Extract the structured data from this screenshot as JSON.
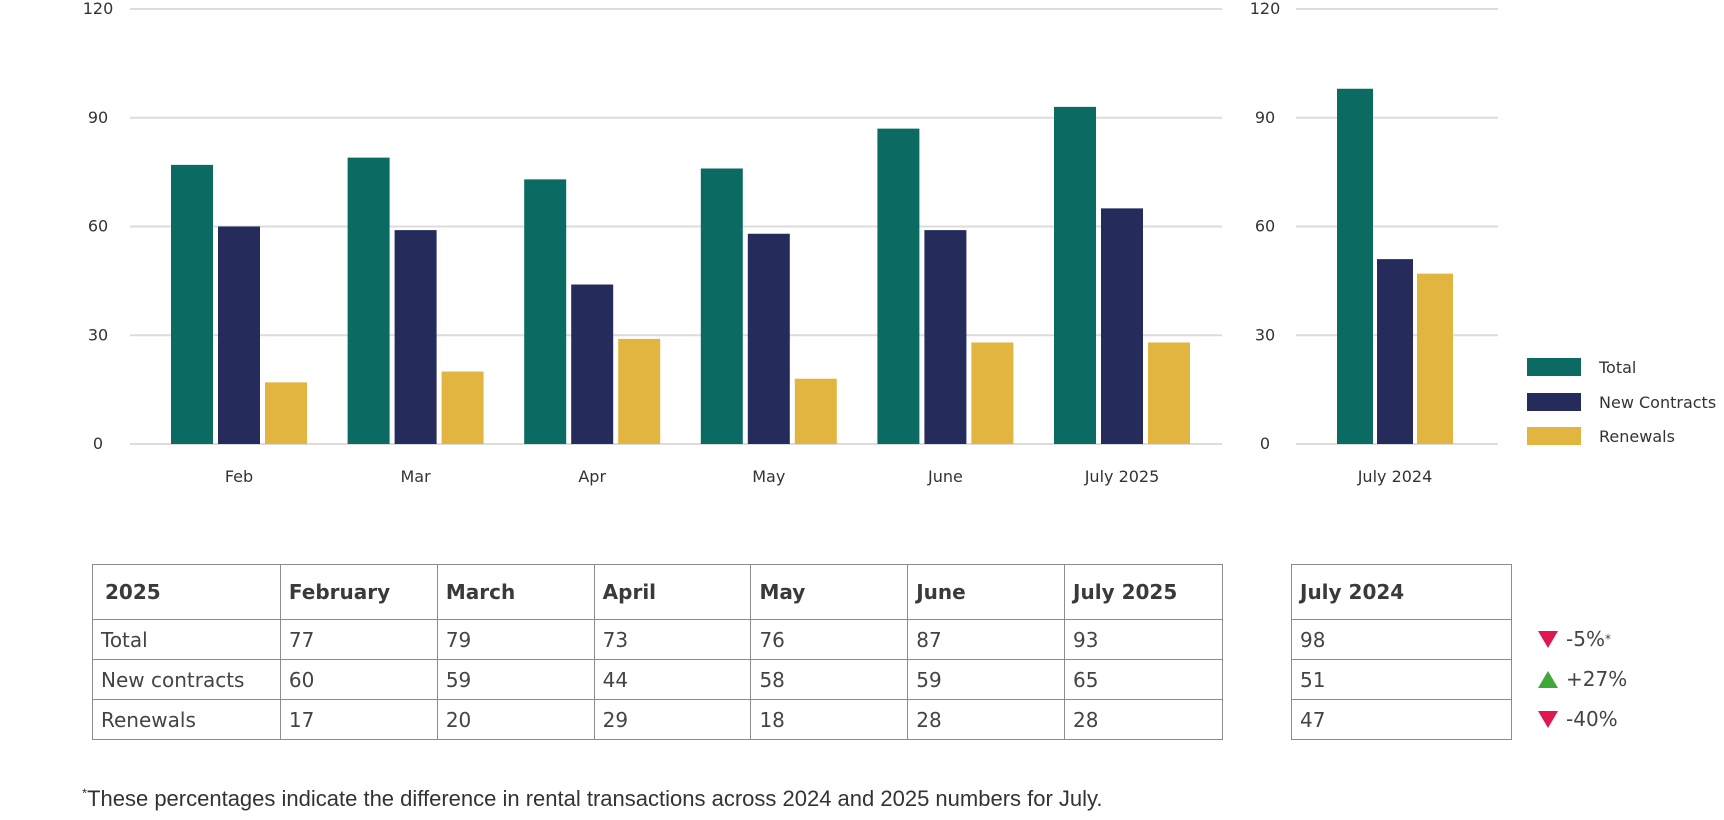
{
  "colors": {
    "total": "#0b6b62",
    "new": "#252b5a",
    "renewals": "#e1b53f",
    "down": "#e3174f",
    "up": "#3ea839"
  },
  "chart_data": [
    {
      "type": "bar",
      "categories": [
        "Feb",
        "Mar",
        "Apr",
        "May",
        "June",
        "July 2025"
      ],
      "series": [
        {
          "name": "Total",
          "values": [
            77,
            79,
            73,
            76,
            87,
            93
          ]
        },
        {
          "name": "New Contracts",
          "values": [
            60,
            59,
            44,
            58,
            59,
            65
          ]
        },
        {
          "name": "Renewals",
          "values": [
            17,
            20,
            29,
            18,
            28,
            28
          ]
        }
      ],
      "ylim": [
        0,
        120
      ],
      "yticks": [
        0,
        30,
        60,
        90,
        120
      ],
      "grid": true
    },
    {
      "type": "bar",
      "categories": [
        "July 2024"
      ],
      "series": [
        {
          "name": "Total",
          "values": [
            98
          ]
        },
        {
          "name": "New Contracts",
          "values": [
            51
          ]
        },
        {
          "name": "Renewals",
          "values": [
            47
          ]
        }
      ],
      "ylim": [
        0,
        120
      ],
      "yticks": [
        0,
        30,
        60,
        90,
        120
      ],
      "grid": true,
      "legend": "right"
    }
  ],
  "legend": [
    "Total",
    "New Contracts",
    "Renewals"
  ],
  "table": {
    "headers": [
      "2025",
      "February",
      "March",
      "April",
      "May",
      "June",
      "July 2025"
    ],
    "rows": [
      [
        "Total",
        "77",
        "79",
        "73",
        "76",
        "87",
        "93"
      ],
      [
        "New contracts",
        "60",
        "59",
        "44",
        "58",
        "59",
        "65"
      ],
      [
        "Renewals",
        "17",
        "20",
        "29",
        "18",
        "28",
        "28"
      ]
    ]
  },
  "side_table": {
    "header": "July 2024",
    "rows": [
      "98",
      "51",
      "47"
    ]
  },
  "changes": [
    {
      "direction": "down",
      "text": "-5%",
      "mark": "*"
    },
    {
      "direction": "up",
      "text": "+27%",
      "mark": ""
    },
    {
      "direction": "down",
      "text": "-40%",
      "mark": ""
    }
  ],
  "footnote": {
    "mark": "*",
    "text": "These percentages indicate the difference in rental transactions across 2024 and 2025 numbers for July."
  }
}
